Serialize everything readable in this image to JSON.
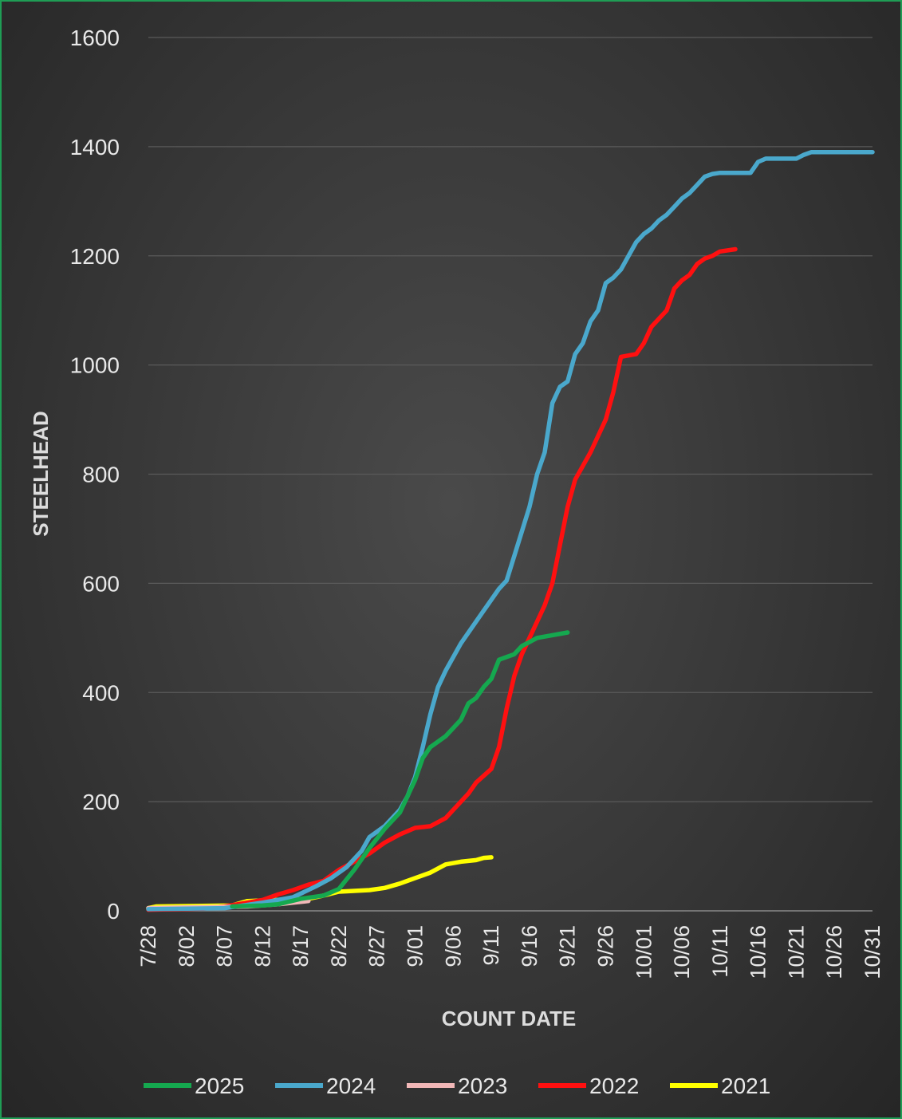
{
  "chart_data": {
    "type": "line",
    "title": "",
    "xlabel": "COUNT DATE",
    "ylabel": "STEELHEAD",
    "ylim": [
      0,
      1600
    ],
    "yticks": [
      0,
      200,
      400,
      600,
      800,
      1000,
      1200,
      1400,
      1600
    ],
    "xlim": [
      "7/28",
      "10/31"
    ],
    "xticks": [
      "7/28",
      "8/02",
      "8/07",
      "8/12",
      "8/17",
      "8/22",
      "8/27",
      "9/01",
      "9/06",
      "9/11",
      "9/16",
      "9/21",
      "9/26",
      "10/01",
      "10/06",
      "10/11",
      "10/16",
      "10/21",
      "10/26",
      "10/31"
    ],
    "grid": true,
    "legend": "bottom",
    "series": [
      {
        "name": "2025",
        "color": "#15a84f",
        "points": [
          [
            "8/08",
            8
          ],
          [
            "8/12",
            10
          ],
          [
            "8/14",
            12
          ],
          [
            "8/17",
            22
          ],
          [
            "8/20",
            28
          ],
          [
            "8/22",
            40
          ],
          [
            "8/24",
            75
          ],
          [
            "8/26",
            115
          ],
          [
            "8/28",
            150
          ],
          [
            "8/30",
            180
          ],
          [
            "9/01",
            240
          ],
          [
            "9/02",
            280
          ],
          [
            "9/03",
            300
          ],
          [
            "9/05",
            320
          ],
          [
            "9/07",
            350
          ],
          [
            "9/08",
            380
          ],
          [
            "9/09",
            390
          ],
          [
            "9/10",
            410
          ],
          [
            "9/11",
            425
          ],
          [
            "9/12",
            460
          ],
          [
            "9/14",
            470
          ],
          [
            "9/15",
            485
          ],
          [
            "9/17",
            500
          ],
          [
            "9/19",
            505
          ],
          [
            "9/21",
            510
          ]
        ]
      },
      {
        "name": "2024",
        "color": "#4aa8cc",
        "points": [
          [
            "7/28",
            3
          ],
          [
            "8/07",
            5
          ],
          [
            "8/12",
            15
          ],
          [
            "8/16",
            25
          ],
          [
            "8/19",
            45
          ],
          [
            "8/21",
            60
          ],
          [
            "8/23",
            80
          ],
          [
            "8/24",
            95
          ],
          [
            "8/25",
            110
          ],
          [
            "8/26",
            135
          ],
          [
            "8/28",
            155
          ],
          [
            "8/30",
            185
          ],
          [
            "8/31",
            210
          ],
          [
            "9/01",
            245
          ],
          [
            "9/02",
            300
          ],
          [
            "9/03",
            360
          ],
          [
            "9/04",
            410
          ],
          [
            "9/05",
            440
          ],
          [
            "9/07",
            490
          ],
          [
            "9/10",
            550
          ],
          [
            "9/12",
            590
          ],
          [
            "9/13",
            605
          ],
          [
            "9/14",
            650
          ],
          [
            "9/16",
            740
          ],
          [
            "9/17",
            800
          ],
          [
            "9/18",
            840
          ],
          [
            "9/19",
            930
          ],
          [
            "9/20",
            960
          ],
          [
            "9/21",
            970
          ],
          [
            "9/22",
            1020
          ],
          [
            "9/23",
            1040
          ],
          [
            "9/24",
            1080
          ],
          [
            "9/25",
            1100
          ],
          [
            "9/26",
            1150
          ],
          [
            "9/27",
            1160
          ],
          [
            "9/28",
            1175
          ],
          [
            "9/29",
            1200
          ],
          [
            "9/30",
            1225
          ],
          [
            "10/01",
            1240
          ],
          [
            "10/02",
            1250
          ],
          [
            "10/03",
            1265
          ],
          [
            "10/04",
            1275
          ],
          [
            "10/05",
            1290
          ],
          [
            "10/06",
            1305
          ],
          [
            "10/07",
            1315
          ],
          [
            "10/08",
            1330
          ],
          [
            "10/09",
            1345
          ],
          [
            "10/10",
            1350
          ],
          [
            "10/11",
            1352
          ],
          [
            "10/15",
            1352
          ],
          [
            "10/16",
            1372
          ],
          [
            "10/17",
            1378
          ],
          [
            "10/21",
            1378
          ],
          [
            "10/22",
            1385
          ],
          [
            "10/23",
            1390
          ],
          [
            "10/31",
            1390
          ]
        ]
      },
      {
        "name": "2023",
        "color": "#f2b8b8",
        "points": [
          [
            "7/28",
            5
          ],
          [
            "8/10",
            8
          ],
          [
            "8/14",
            12
          ],
          [
            "8/18",
            18
          ]
        ]
      },
      {
        "name": "2022",
        "color": "#ff1010",
        "points": [
          [
            "7/28",
            2
          ],
          [
            "8/04",
            4
          ],
          [
            "8/07",
            8
          ],
          [
            "8/10",
            15
          ],
          [
            "8/12",
            20
          ],
          [
            "8/14",
            30
          ],
          [
            "8/16",
            38
          ],
          [
            "8/18",
            48
          ],
          [
            "8/20",
            55
          ],
          [
            "8/21",
            65
          ],
          [
            "8/22",
            75
          ],
          [
            "8/24",
            90
          ],
          [
            "8/26",
            105
          ],
          [
            "8/28",
            125
          ],
          [
            "8/30",
            140
          ],
          [
            "9/01",
            152
          ],
          [
            "9/03",
            155
          ],
          [
            "9/05",
            170
          ],
          [
            "9/07",
            200
          ],
          [
            "9/08",
            215
          ],
          [
            "9/09",
            235
          ],
          [
            "9/11",
            260
          ],
          [
            "9/12",
            300
          ],
          [
            "9/13",
            370
          ],
          [
            "9/14",
            430
          ],
          [
            "9/15",
            470
          ],
          [
            "9/16",
            500
          ],
          [
            "9/17",
            530
          ],
          [
            "9/18",
            560
          ],
          [
            "9/19",
            600
          ],
          [
            "9/20",
            670
          ],
          [
            "9/21",
            740
          ],
          [
            "9/22",
            790
          ],
          [
            "9/23",
            815
          ],
          [
            "9/24",
            840
          ],
          [
            "9/25",
            870
          ],
          [
            "9/26",
            900
          ],
          [
            "9/27",
            950
          ],
          [
            "9/28",
            1015
          ],
          [
            "9/30",
            1020
          ],
          [
            "10/01",
            1040
          ],
          [
            "10/02",
            1070
          ],
          [
            "10/04",
            1100
          ],
          [
            "10/05",
            1140
          ],
          [
            "10/06",
            1155
          ],
          [
            "10/07",
            1165
          ],
          [
            "10/08",
            1185
          ],
          [
            "10/09",
            1195
          ],
          [
            "10/10",
            1200
          ],
          [
            "10/11",
            1208
          ],
          [
            "10/13",
            1212
          ]
        ]
      },
      {
        "name": "2021",
        "color": "#ffff00",
        "points": [
          [
            "7/28",
            5
          ],
          [
            "7/29",
            8
          ],
          [
            "8/08",
            10
          ],
          [
            "8/10",
            18
          ],
          [
            "8/14",
            20
          ],
          [
            "8/18",
            22
          ],
          [
            "8/20",
            28
          ],
          [
            "8/22",
            35
          ],
          [
            "8/26",
            38
          ],
          [
            "8/28",
            42
          ],
          [
            "8/30",
            50
          ],
          [
            "9/01",
            60
          ],
          [
            "9/03",
            70
          ],
          [
            "9/05",
            85
          ],
          [
            "9/07",
            90
          ],
          [
            "9/09",
            93
          ],
          [
            "9/10",
            97
          ],
          [
            "9/11",
            98
          ]
        ]
      }
    ]
  }
}
